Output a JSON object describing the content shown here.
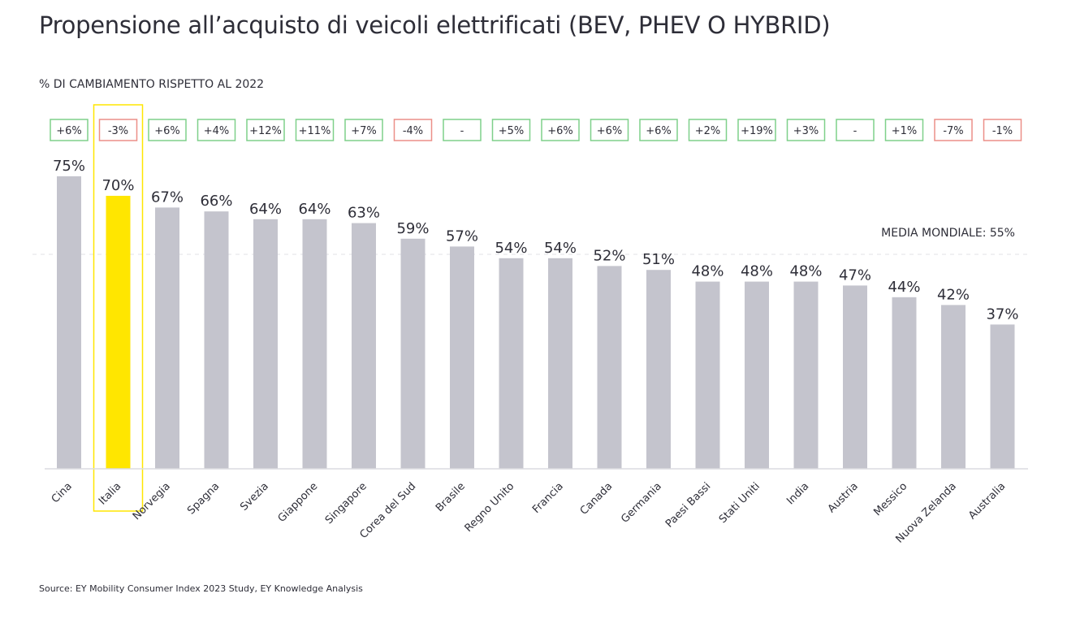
{
  "title": "Propensione all’acquisto di veicoli elettrificati (BEV, PHEV O HYBRID)",
  "subtitle": "% DI CAMBIAMENTO RISPETTO AL 2022",
  "source": "Source: EY Mobility Consumer Index 2023 Study, EY Knowledge Analysis",
  "colors": {
    "bar": "#c4c4cd",
    "highlight": "#ffe600",
    "positive_box": "#7fd08a",
    "negative_box": "#ec8f88",
    "neutral_box": "#7fd08a",
    "axis": "#dcdce0",
    "average_line": "#e2e2e6"
  },
  "chart_data": {
    "type": "bar",
    "ylim": [
      0,
      100
    ],
    "highlight_category": "Italia",
    "average": {
      "label": "MEDIA MONDIALE: 55%",
      "value": 55
    },
    "categories": [
      "Cina",
      "Italia",
      "Norvegia",
      "Spagna",
      "Svezia",
      "Giappone",
      "Singapore",
      "Corea del Sud",
      "Brasile",
      "Regno Unito",
      "Francia",
      "Canada",
      "Germania",
      "Paesi Bassi",
      "Stati Uniti",
      "India",
      "Austria",
      "Messico",
      "Nuova Zelanda",
      "Australia"
    ],
    "values": [
      75,
      70,
      67,
      66,
      64,
      64,
      63,
      59,
      57,
      54,
      54,
      52,
      51,
      48,
      48,
      48,
      47,
      44,
      42,
      37
    ],
    "value_labels": [
      "75%",
      "70%",
      "67%",
      "66%",
      "64%",
      "64%",
      "63%",
      "59%",
      "57%",
      "54%",
      "54%",
      "52%",
      "51%",
      "48%",
      "48%",
      "48%",
      "47%",
      "44%",
      "42%",
      "37%"
    ],
    "changes": [
      "+6%",
      "-3%",
      "+6%",
      "+4%",
      "+12%",
      "+11%",
      "+7%",
      "-4%",
      "-",
      "+5%",
      "+6%",
      "+6%",
      "+6%",
      "+2%",
      "+19%",
      "+3%",
      "-",
      "+1%",
      "-7%",
      "-1%"
    ]
  }
}
